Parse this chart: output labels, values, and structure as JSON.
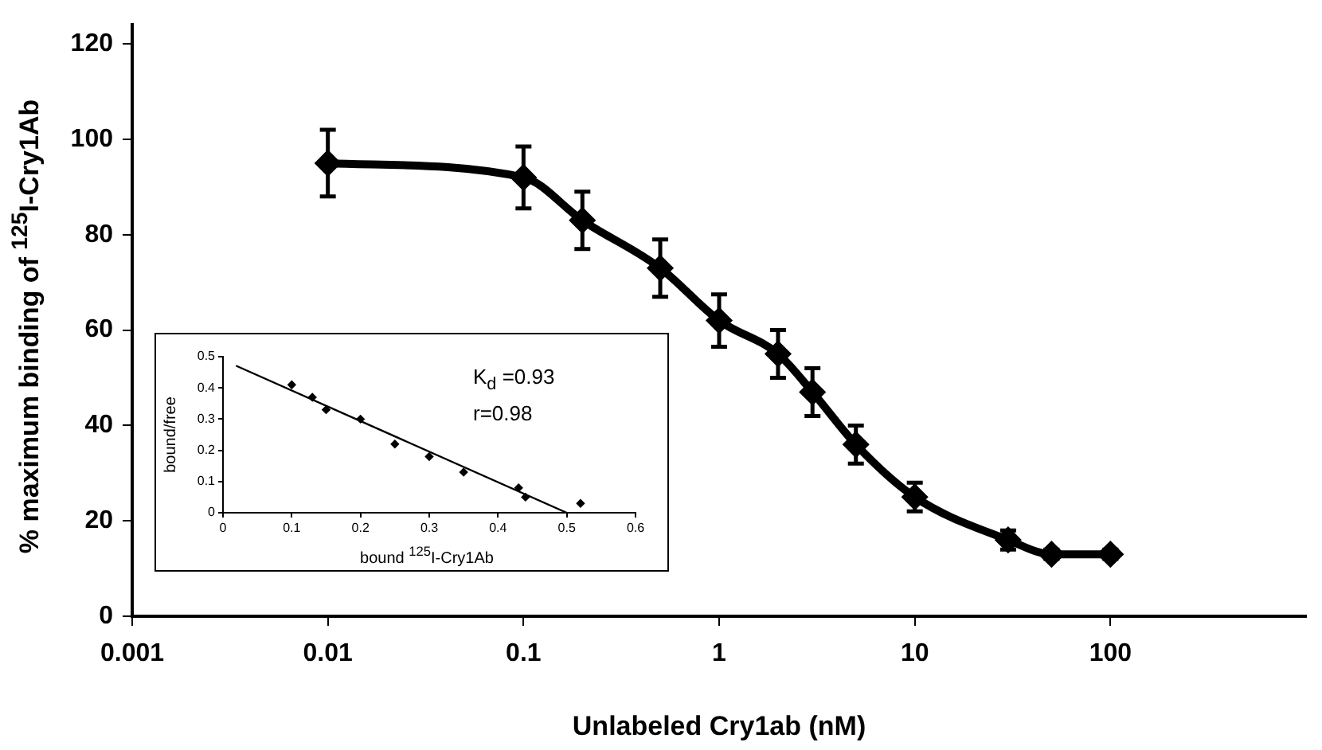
{
  "chart_data": [
    {
      "type": "line",
      "xlabel": "Unlabeled Cry1ab (nM)",
      "ylabel": "% maximum binding of $^{125}$I-Cry1Ab",
      "log": "x",
      "xlim": [
        0.001,
        1000
      ],
      "xticks": [
        0.001,
        0.01,
        0.1,
        1,
        10,
        100
      ],
      "ylim": [
        0,
        124
      ],
      "yticks": [
        0,
        20,
        40,
        60,
        80,
        100,
        120
      ],
      "grid": false,
      "marker": "diamond",
      "x": [
        0.01,
        0.1,
        0.2,
        0.5,
        1,
        2,
        3,
        5,
        10,
        30,
        50,
        100
      ],
      "series": [
        {
          "color": "#000000",
          "values": [
            95,
            92,
            83,
            73,
            62,
            55,
            47,
            36,
            25,
            16,
            13,
            13
          ],
          "errors": [
            7,
            6.5,
            6,
            6,
            5.5,
            5,
            5,
            4,
            3,
            2,
            1,
            1
          ]
        }
      ]
    },
    {
      "type": "scatter",
      "xlabel": "bound $^{125}$I-Cry1Ab",
      "ylabel": "bound/free",
      "annotations": [
        "K$_{d}$ =0.93",
        "r=0.98"
      ],
      "xlim": [
        0,
        0.6
      ],
      "xticks": [
        0,
        0.1,
        0.2,
        0.3,
        0.4,
        0.5,
        0.6
      ],
      "ylim": [
        0,
        0.5
      ],
      "yticks": [
        0,
        0.1,
        0.2,
        0.3,
        0.4,
        0.5
      ],
      "grid": false,
      "marker": "diamond",
      "series": [
        {
          "color": "#000000",
          "x": [
            0.1,
            0.13,
            0.15,
            0.2,
            0.25,
            0.3,
            0.35,
            0.43,
            0.44,
            0.52
          ],
          "values": [
            0.41,
            0.37,
            0.33,
            0.3,
            0.22,
            0.18,
            0.13,
            0.08,
            0.05,
            0.03
          ]
        },
        {
          "type": "line",
          "marker": "none",
          "color": "#000000",
          "x": [
            0.02,
            0.5
          ],
          "values": [
            0.47,
            0
          ]
        }
      ]
    }
  ]
}
